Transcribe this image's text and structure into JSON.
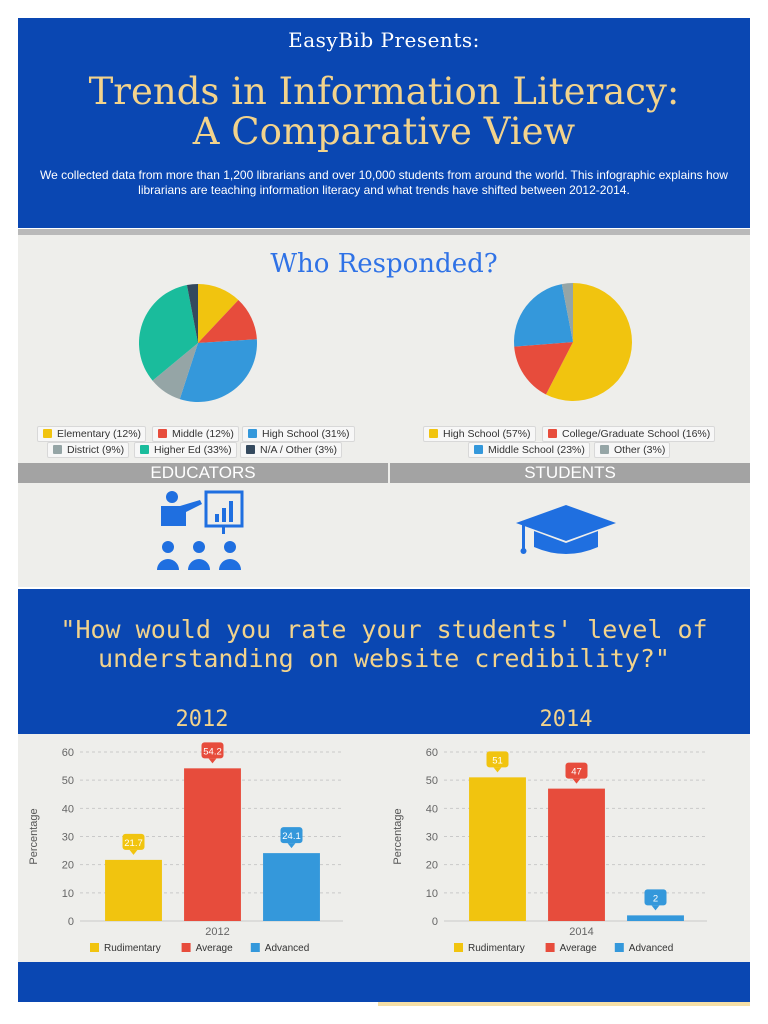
{
  "header": {
    "presents": "EasyBib Presents:",
    "title_line1": "Trends in Information Literacy:",
    "title_line2": "A Comparative View",
    "intro": "We collected data from more than 1,200 librarians and over 10,000 students from around the world. This infographic explains how librarians are teaching information literacy and what trends have shifted between 2012-2014."
  },
  "respondents": {
    "title": "Who Responded?",
    "educators_label": "EDUCATORS",
    "students_label": "STUDENTS",
    "educators_legend": [
      "Elementary (12%)",
      "Middle (12%)",
      "High School (31%)",
      "District (9%)",
      "Higher Ed (33%)",
      "N/A / Other (3%)"
    ],
    "students_legend": [
      "High School (57%)",
      "College/Graduate School (16%)",
      "Middle School (23%)",
      "Other (3%)"
    ]
  },
  "question": {
    "text_line1": "\"How would you rate your students' level of",
    "text_line2": "understanding on website credibility?\""
  },
  "colors": {
    "brand_blue": "#0a47b2",
    "accent_gold": "#f2d38c",
    "yellow": "#f1c40f",
    "red": "#e74c3c",
    "blue": "#3498db",
    "gray": "#95a5a6",
    "teal": "#1abc9c",
    "navy": "#34495e"
  },
  "chart_data": [
    {
      "type": "pie",
      "categories": [
        "Elementary",
        "Middle",
        "High School",
        "District",
        "Higher Ed",
        "N/A / Other"
      ],
      "values": [
        12,
        12,
        31,
        9,
        33,
        3
      ],
      "colors": [
        "#f1c40f",
        "#e74c3c",
        "#3498db",
        "#95a5a6",
        "#1abc9c",
        "#34495e"
      ],
      "title": "EDUCATORS",
      "legend": "bottom"
    },
    {
      "type": "pie",
      "categories": [
        "High School",
        "College/Graduate School",
        "Middle School",
        "Other"
      ],
      "values": [
        57,
        16,
        23,
        3
      ],
      "colors": [
        "#f1c40f",
        "#e74c3c",
        "#3498db",
        "#95a5a6"
      ],
      "title": "STUDENTS",
      "legend": "bottom"
    },
    {
      "type": "bar",
      "title": "2012",
      "categories": [
        "Rudimentary",
        "Average",
        "Advanced"
      ],
      "values": [
        21.7,
        54.2,
        24.1
      ],
      "colors": [
        "#f1c40f",
        "#e74c3c",
        "#3498db"
      ],
      "xlabel": "2012",
      "ylabel": "Percentage",
      "ylim": [
        0,
        60
      ],
      "yticks": [
        0,
        10,
        20,
        30,
        40,
        50,
        60
      ],
      "grid": true,
      "legend": "bottom"
    },
    {
      "type": "bar",
      "title": "2014",
      "categories": [
        "Rudimentary",
        "Average",
        "Advanced"
      ],
      "values": [
        51,
        47,
        2
      ],
      "colors": [
        "#f1c40f",
        "#e74c3c",
        "#3498db"
      ],
      "xlabel": "2014",
      "ylabel": "Percentage",
      "ylim": [
        0,
        60
      ],
      "yticks": [
        0,
        10,
        20,
        30,
        40,
        50,
        60
      ],
      "grid": true,
      "legend": "bottom"
    }
  ]
}
